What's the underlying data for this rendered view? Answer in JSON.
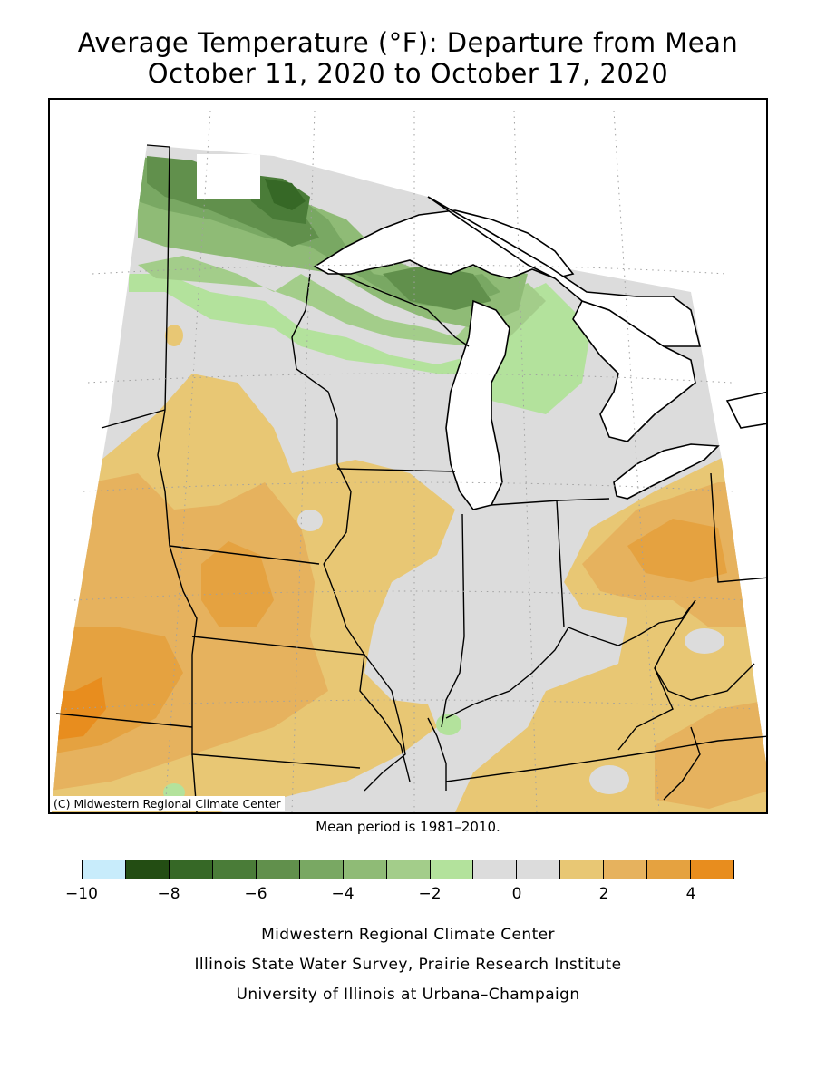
{
  "header": {
    "title_line1": "Average Temperature (°F): Departure from Mean",
    "title_line2": "October 11, 2020 to October 17, 2020"
  },
  "map": {
    "copyright": "(C) Midwestern Regional Climate Center",
    "mean_note": "Mean period is 1981–2010.",
    "colors": {
      "lake_water": "#ffffff",
      "grid_dots": "#a0a0a0",
      "border_lines": "#000000"
    }
  },
  "legend": {
    "bins": [
      {
        "range": [
          -10,
          -9
        ],
        "color": "#c8ecfb"
      },
      {
        "range": [
          -9,
          -8
        ],
        "color": "#234d13"
      },
      {
        "range": [
          -8,
          -7
        ],
        "color": "#366826"
      },
      {
        "range": [
          -7,
          -6
        ],
        "color": "#4a7c38"
      },
      {
        "range": [
          -6,
          -5
        ],
        "color": "#61904c"
      },
      {
        "range": [
          -5,
          -4
        ],
        "color": "#79a863"
      },
      {
        "range": [
          -4,
          -3
        ],
        "color": "#8fbb76"
      },
      {
        "range": [
          -3,
          -2
        ],
        "color": "#a3cd8a"
      },
      {
        "range": [
          -2,
          -1
        ],
        "color": "#b3e29c"
      },
      {
        "range": [
          -1,
          0
        ],
        "color": "#dcdcdc"
      },
      {
        "range": [
          0,
          1
        ],
        "color": "#dcdcdc"
      },
      {
        "range": [
          1,
          2
        ],
        "color": "#e8c774"
      },
      {
        "range": [
          2,
          3
        ],
        "color": "#e6b25e"
      },
      {
        "range": [
          3,
          4
        ],
        "color": "#e5a240"
      },
      {
        "range": [
          4,
          5
        ],
        "color": "#e88d1e"
      }
    ],
    "tick_labels": [
      "−10",
      "−8",
      "−6",
      "−4",
      "−2",
      "0",
      "2",
      "4"
    ],
    "tick_values": [
      -10,
      -8,
      -6,
      -4,
      -2,
      0,
      2,
      4
    ],
    "range": [
      -10,
      5
    ]
  },
  "credits": {
    "line1": "Midwestern Regional Climate Center",
    "line2": "Illinois State Water Survey, Prairie Research Institute",
    "line3": "University of Illinois at Urbana–Champaign"
  }
}
